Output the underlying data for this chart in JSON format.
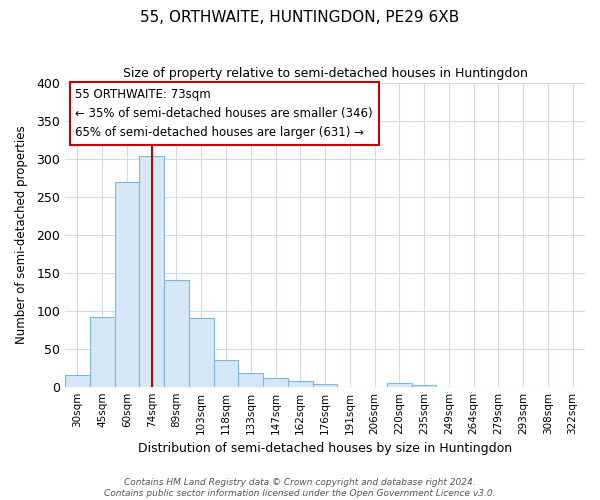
{
  "title": "55, ORTHWAITE, HUNTINGDON, PE29 6XB",
  "subtitle": "Size of property relative to semi-detached houses in Huntingdon",
  "xlabel": "Distribution of semi-detached houses by size in Huntingdon",
  "ylabel": "Number of semi-detached properties",
  "categories": [
    "30sqm",
    "45sqm",
    "60sqm",
    "74sqm",
    "89sqm",
    "103sqm",
    "118sqm",
    "133sqm",
    "147sqm",
    "162sqm",
    "176sqm",
    "191sqm",
    "206sqm",
    "220sqm",
    "235sqm",
    "249sqm",
    "264sqm",
    "279sqm",
    "293sqm",
    "308sqm",
    "322sqm"
  ],
  "values": [
    15,
    92,
    270,
    304,
    141,
    91,
    35,
    18,
    12,
    8,
    4,
    0,
    0,
    5,
    2,
    0,
    0,
    0,
    0,
    0,
    0
  ],
  "bar_color": "#d6e8f7",
  "bar_edge_color": "#7bb8e0",
  "vline_x_index": 3,
  "vline_color": "#cc0000",
  "ylim": [
    0,
    400
  ],
  "yticks": [
    0,
    50,
    100,
    150,
    200,
    250,
    300,
    350,
    400
  ],
  "annotation_title": "55 ORTHWAITE: 73sqm",
  "annotation_line1": "← 35% of semi-detached houses are smaller (346)",
  "annotation_line2": "65% of semi-detached houses are larger (631) →",
  "annotation_box_facecolor": "#ffffff",
  "annotation_box_edgecolor": "#cc0000",
  "footer_line1": "Contains HM Land Registry data © Crown copyright and database right 2024.",
  "footer_line2": "Contains public sector information licensed under the Open Government Licence v3.0.",
  "background_color": "#ffffff",
  "plot_bg_color": "#ffffff",
  "grid_color": "#d0dce8",
  "title_fontsize": 11,
  "subtitle_fontsize": 9
}
